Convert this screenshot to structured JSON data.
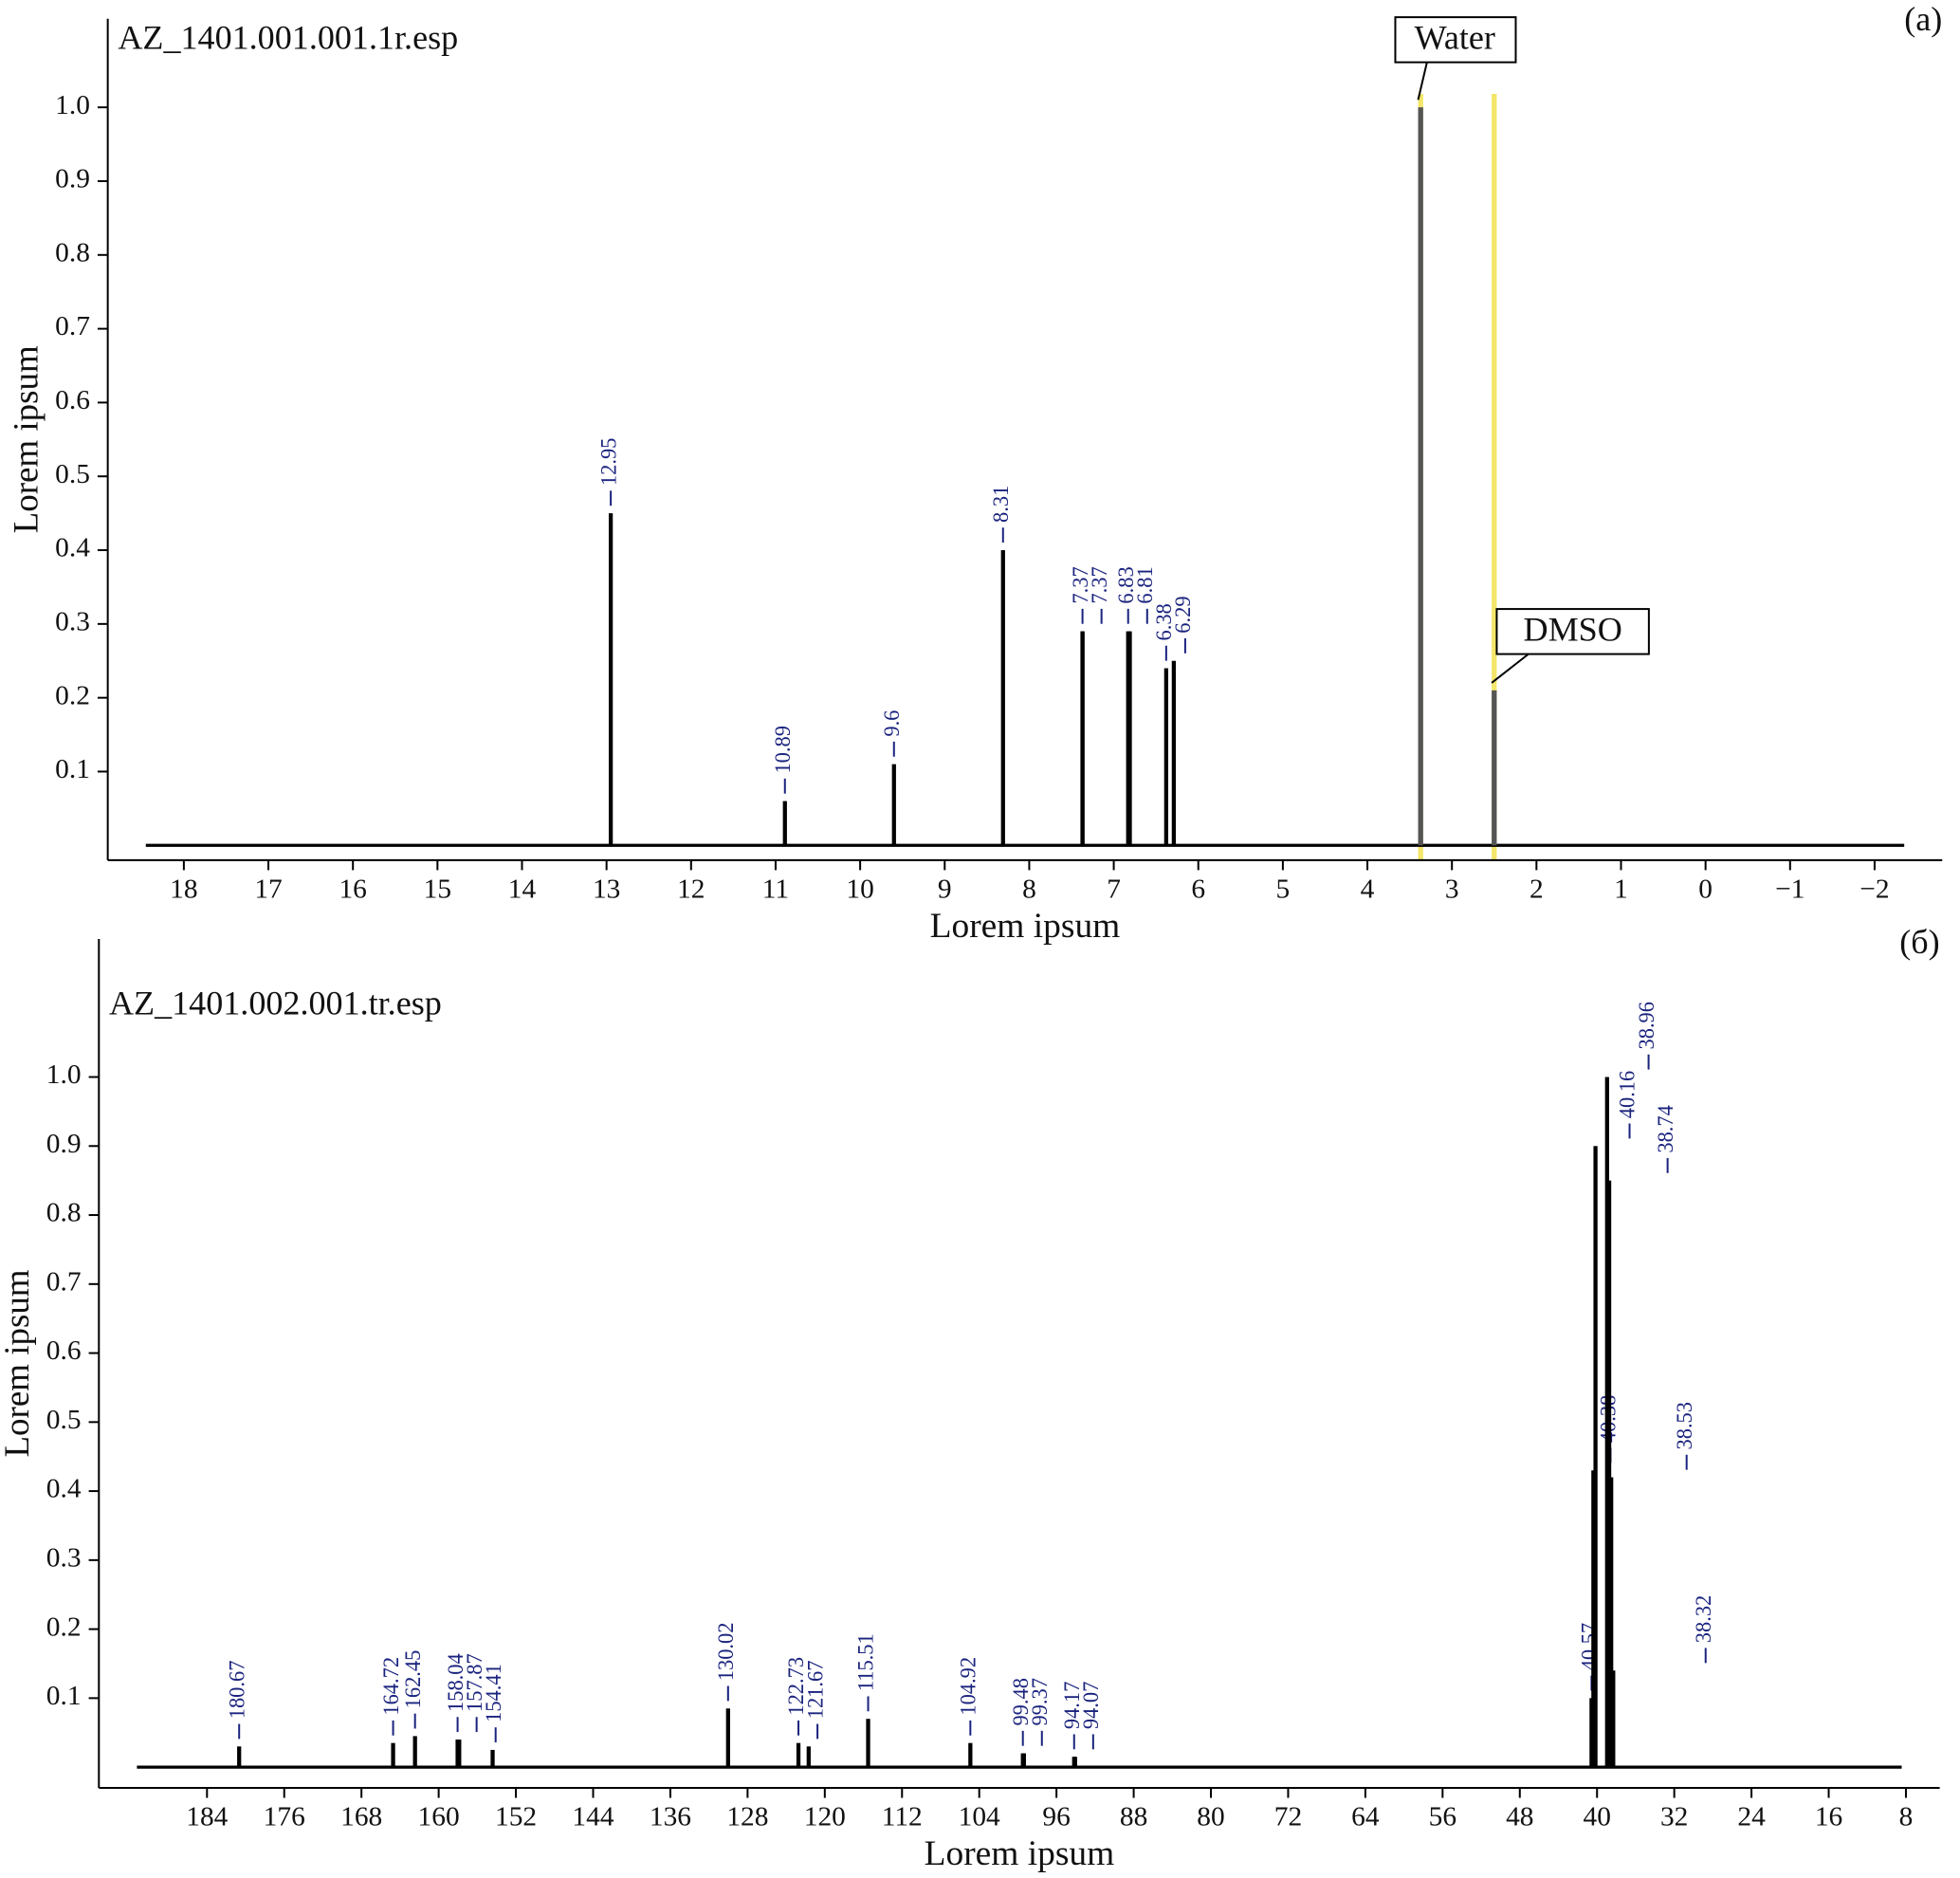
{
  "chart_data": [
    {
      "type": "spectrum",
      "file_label": "AZ_1401.001.001.1r.esp",
      "panel_label": "(a)",
      "xlabel": "Lorem ipsum",
      "ylabel": "Lorem ipsum",
      "xlim": [
        18.9,
        -2.8
      ],
      "ylim": [
        -0.02,
        1.12
      ],
      "xticks": [
        18,
        17,
        16,
        15,
        14,
        13,
        12,
        11,
        10,
        9,
        8,
        7,
        6,
        5,
        4,
        3,
        2,
        1,
        0,
        {
          "value": -1,
          "label": "−1"
        },
        {
          "value": -2,
          "label": "−2"
        }
      ],
      "yticks": [
        0.1,
        0.2,
        0.3,
        0.4,
        0.5,
        0.6,
        0.7,
        0.8,
        0.9,
        {
          "value": 1,
          "label": "1.0"
        }
      ],
      "x": [
        12.95,
        10.89,
        9.6,
        8.31,
        7.37,
        7.37,
        6.83,
        6.81,
        6.38,
        6.29
      ],
      "values": [
        0.45,
        0.06,
        0.11,
        0.4,
        0.29,
        0.29,
        0.29,
        0.29,
        0.24,
        0.25
      ],
      "color": "#000000",
      "label_color": "#1a237e",
      "highlight_color": "#f3e66a",
      "annotations": [
        {
          "text": "Water",
          "x": 3.37,
          "y": 1.0
        },
        {
          "text": "DMSO",
          "x": 2.5,
          "y": 0.21
        }
      ]
    },
    {
      "type": "spectrum",
      "file_label": "AZ_1401.002.001.tr.esp",
      "panel_label": "(б)",
      "xlabel": "Lorem ipsum",
      "ylabel": "Lorem ipsum",
      "xlim": [
        195.2,
        4.5
      ],
      "ylim": [
        -0.03,
        1.2
      ],
      "xticks": [
        184,
        176,
        168,
        160,
        152,
        144,
        136,
        128,
        120,
        112,
        104,
        96,
        88,
        80,
        72,
        64,
        56,
        48,
        40,
        32,
        24,
        16,
        8
      ],
      "yticks": [
        0.1,
        0.2,
        0.3,
        0.4,
        0.5,
        0.6,
        0.7,
        0.8,
        0.9,
        {
          "value": 1,
          "label": "1.0"
        }
      ],
      "x": [
        180.67,
        164.72,
        162.45,
        158.04,
        157.87,
        154.41,
        130.02,
        122.73,
        121.67,
        115.51,
        104.92,
        99.48,
        99.37,
        94.17,
        94.07,
        40.57,
        40.38,
        40.16,
        38.96,
        38.74,
        38.53,
        38.32
      ],
      "values": [
        0.03,
        0.035,
        0.045,
        0.04,
        0.04,
        0.025,
        0.085,
        0.035,
        0.03,
        0.07,
        0.035,
        0.02,
        0.02,
        0.015,
        0.015,
        0.1,
        0.43,
        0.9,
        1.0,
        0.85,
        0.42,
        0.14
      ],
      "color": "#000000",
      "label_color": "#1a237e"
    }
  ]
}
